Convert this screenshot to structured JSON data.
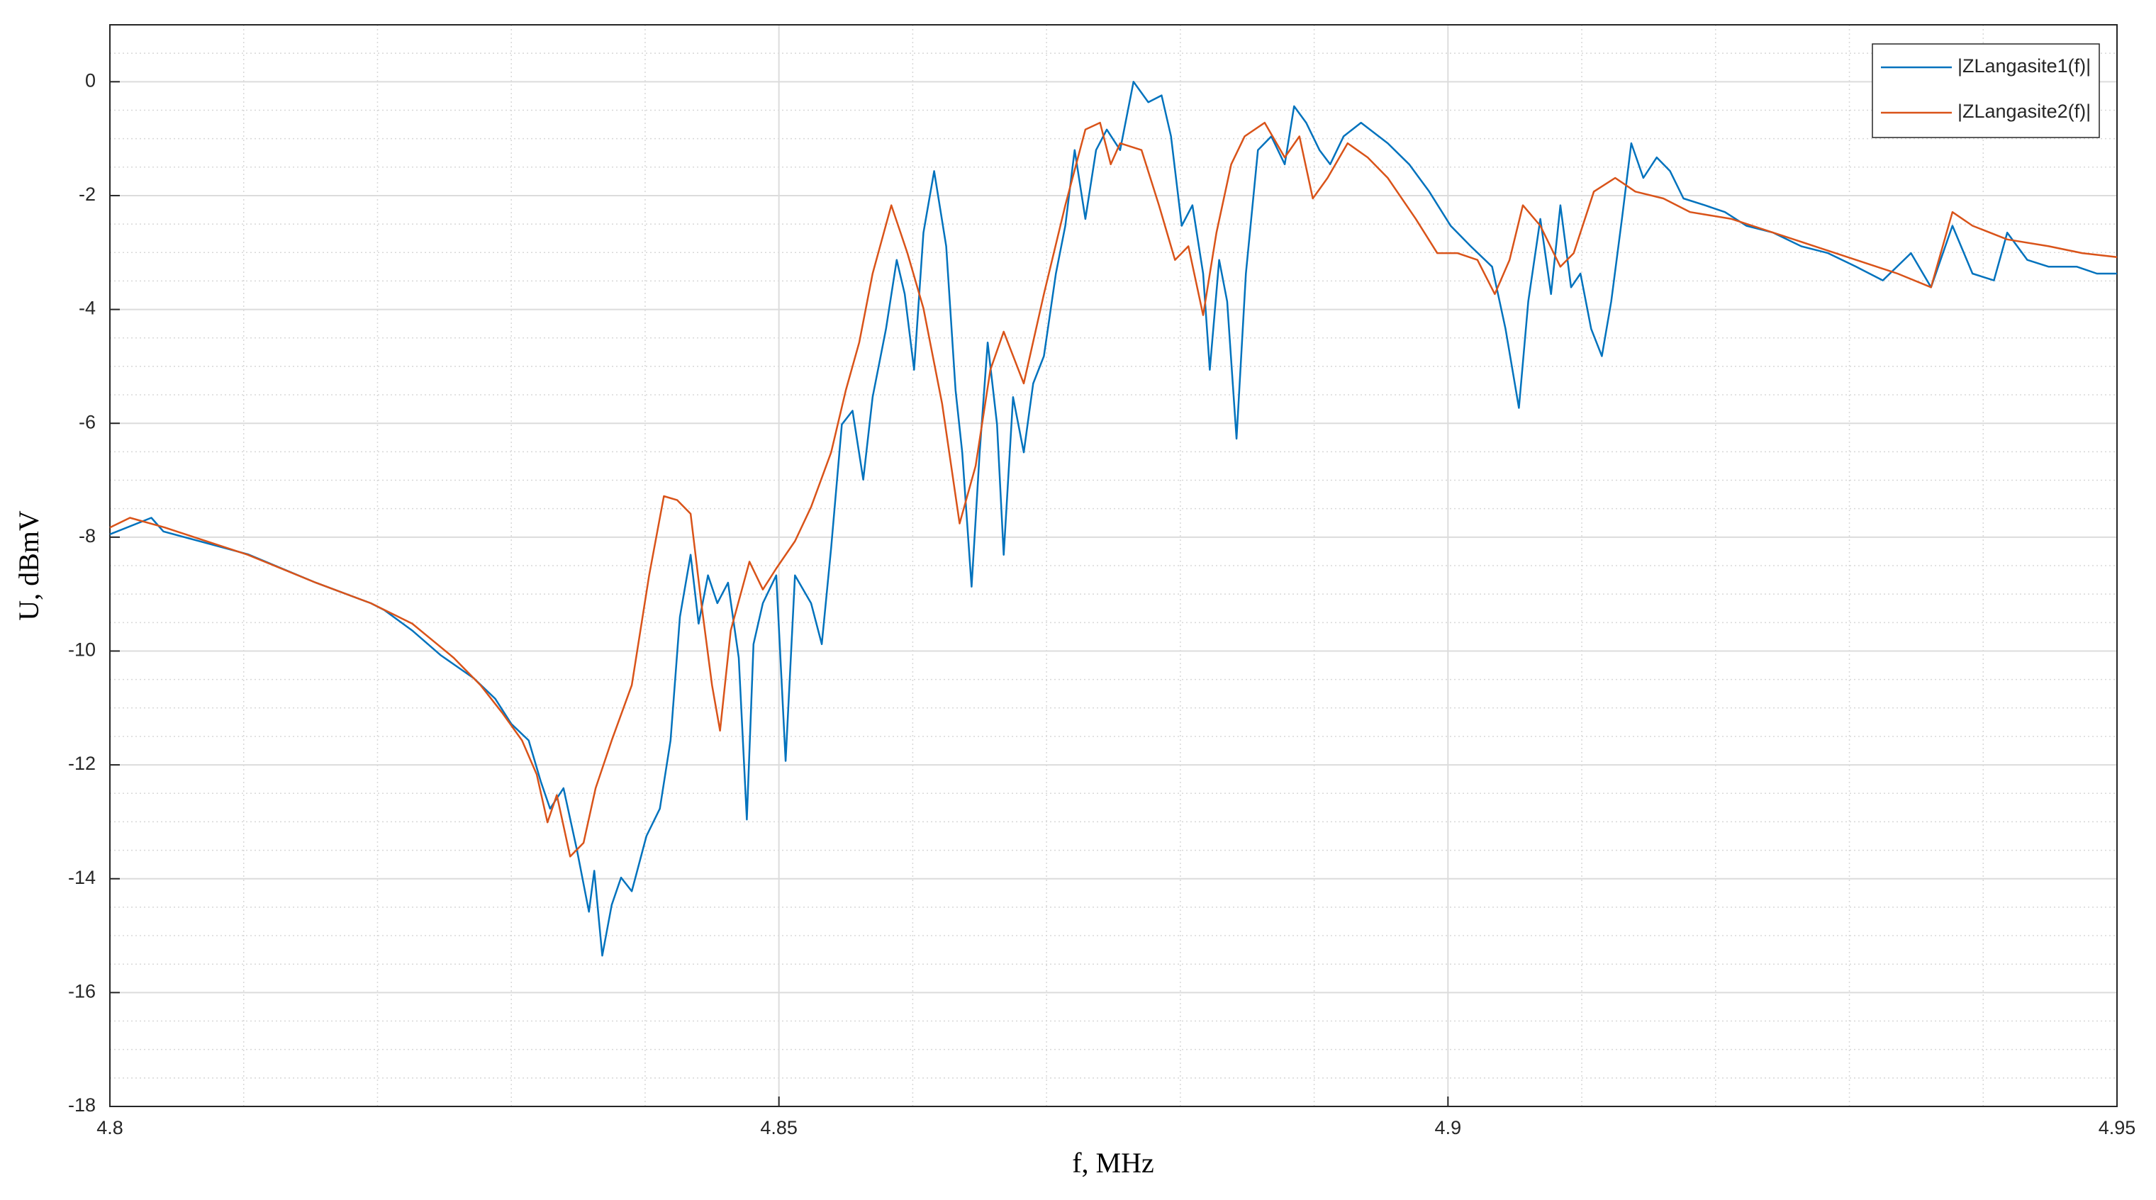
{
  "chart_data": {
    "type": "line",
    "xlabel": "f, MHz",
    "ylabel": "U, dBmV",
    "xlim": [
      4.8,
      4.95
    ],
    "xticks": [
      4.8,
      4.85,
      4.9,
      4.95
    ],
    "ylim": [
      -18,
      1
    ],
    "yticks": [
      -18,
      -16,
      -14,
      -12,
      -10,
      -8,
      -6,
      -4,
      -2,
      0
    ],
    "grid": true,
    "xminorticks": [
      4.81,
      4.82,
      4.83,
      4.84,
      4.86,
      4.87,
      4.88,
      4.89,
      4.91,
      4.92,
      4.93,
      4.94
    ],
    "yminorticks": [
      -17.5,
      -17,
      -16.5,
      -15.5,
      -15,
      -14.5,
      -13.5,
      -13,
      -12.5,
      -11.5,
      -11,
      -10.5,
      -9.5,
      -9,
      -8.5,
      -7.5,
      -7,
      -6.5,
      -5.5,
      -5,
      -4.5,
      -3.5,
      -3,
      -2.5,
      -1.5,
      -1,
      -0.5,
      0.5
    ],
    "legend": "upper right",
    "series": [
      {
        "name": "|ZLangasite1(f)|",
        "color": "#0072BD",
        "x": [
          4.8,
          4.8031,
          4.804,
          4.8103,
          4.8154,
          4.8195,
          4.8205,
          4.8226,
          4.8247,
          4.8272,
          4.8288,
          4.83,
          4.8313,
          4.8322,
          4.8329,
          4.8339,
          4.8349,
          4.8358,
          4.8362,
          4.8368,
          4.8375,
          4.8382,
          4.839,
          4.8401,
          4.8411,
          4.8419,
          4.8426,
          4.8434,
          4.844,
          4.8447,
          4.8454,
          4.8462,
          4.847,
          4.8476,
          4.8481,
          4.8488,
          4.8498,
          4.8505,
          4.8512,
          4.8524,
          4.8532,
          4.8539,
          4.8547,
          4.8555,
          4.8563,
          4.857,
          4.858,
          4.8588,
          4.8594,
          4.8601,
          4.8608,
          4.8616,
          4.8625,
          4.8632,
          4.8637,
          4.8644,
          4.865,
          4.8656,
          4.8663,
          4.8668,
          4.8675,
          4.8683,
          4.869,
          4.8698,
          4.8707,
          4.8714,
          4.8721,
          4.8729,
          4.8737,
          4.8745,
          4.8755,
          4.8765,
          4.8776,
          4.8786,
          4.8793,
          4.8801,
          4.8809,
          4.8817,
          4.8822,
          4.8829,
          4.8835,
          4.8842,
          4.8849,
          4.8858,
          4.8868,
          4.8878,
          4.8885,
          4.8894,
          4.8904,
          4.8912,
          4.8922,
          4.8935,
          4.8955,
          4.8971,
          4.8986,
          4.9002,
          4.9017,
          4.9033,
          4.9043,
          4.9053,
          4.906,
          4.9069,
          4.9077,
          4.9084,
          4.9092,
          4.9099,
          4.9107,
          4.9115,
          4.9122,
          4.913,
          4.9137,
          4.9146,
          4.9156,
          4.9166,
          4.9176,
          4.9192,
          4.9207,
          4.9223,
          4.9243,
          4.9264,
          4.9284,
          4.9305,
          4.9325,
          4.9346,
          4.9361,
          4.9377,
          4.9392,
          4.9408,
          4.9418,
          4.9433,
          4.9449,
          4.947,
          4.9485,
          4.95
        ],
        "values": [
          -7.95,
          -7.66,
          -7.9,
          -8.3,
          -8.8,
          -9.16,
          -9.28,
          -9.64,
          -10.07,
          -10.48,
          -10.84,
          -11.28,
          -11.57,
          -12.29,
          -12.77,
          -12.41,
          -13.49,
          -14.58,
          -13.86,
          -15.35,
          -14.46,
          -13.98,
          -14.22,
          -13.25,
          -12.77,
          -11.57,
          -9.4,
          -8.31,
          -9.52,
          -8.67,
          -9.16,
          -8.8,
          -10.12,
          -12.96,
          -9.88,
          -9.16,
          -8.67,
          -11.93,
          -8.67,
          -9.16,
          -9.88,
          -8.19,
          -6.02,
          -5.78,
          -6.99,
          -5.54,
          -4.34,
          -3.13,
          -3.73,
          -5.06,
          -2.65,
          -1.57,
          -2.89,
          -5.42,
          -6.51,
          -8.87,
          -6.51,
          -4.58,
          -6.02,
          -8.31,
          -5.54,
          -6.51,
          -5.3,
          -4.82,
          -3.37,
          -2.53,
          -1.2,
          -2.41,
          -1.2,
          -0.84,
          -1.2,
          0,
          -0.36,
          -0.24,
          -0.96,
          -2.53,
          -2.17,
          -3.37,
          -5.06,
          -3.13,
          -3.86,
          -6.27,
          -3.37,
          -1.2,
          -0.96,
          -1.45,
          -0.43,
          -0.72,
          -1.2,
          -1.45,
          -0.96,
          -0.72,
          -1.08,
          -1.45,
          -1.93,
          -2.53,
          -2.89,
          -3.25,
          -4.34,
          -5.73,
          -3.86,
          -2.41,
          -3.73,
          -2.17,
          -3.61,
          -3.37,
          -4.34,
          -4.82,
          -3.86,
          -2.41,
          -1.08,
          -1.69,
          -1.33,
          -1.57,
          -2.05,
          -2.17,
          -2.29,
          -2.53,
          -2.65,
          -2.89,
          -3.01,
          -3.25,
          -3.49,
          -3.01,
          -3.61,
          -2.53,
          -3.37,
          -3.49,
          -2.65,
          -3.13,
          -3.25,
          -3.25,
          -3.37,
          -3.37
        ]
      },
      {
        "name": "|ZLangasite2(f)|",
        "color": "#D95319",
        "x": [
          4.8,
          4.8015,
          4.8041,
          4.8103,
          4.8154,
          4.8195,
          4.8226,
          4.8257,
          4.8277,
          4.8293,
          4.8308,
          4.8319,
          4.8327,
          4.8334,
          4.8344,
          4.8354,
          4.8363,
          4.8375,
          4.839,
          4.8403,
          4.8414,
          4.8424,
          4.8434,
          4.8442,
          4.845,
          4.8456,
          4.8464,
          4.8478,
          4.8488,
          4.8498,
          4.8512,
          4.8524,
          4.8539,
          4.855,
          4.856,
          4.857,
          4.8584,
          4.8596,
          4.8608,
          4.8622,
          4.8635,
          4.8647,
          4.8658,
          4.8668,
          4.8683,
          4.8698,
          4.8714,
          4.8729,
          4.874,
          4.8748,
          4.8755,
          4.8771,
          4.8784,
          4.8796,
          4.8806,
          4.8817,
          4.8827,
          4.8838,
          4.8848,
          4.8863,
          4.8878,
          4.8889,
          4.8899,
          4.891,
          4.8925,
          4.894,
          4.8955,
          4.8976,
          4.8992,
          4.9007,
          4.9022,
          4.9035,
          4.9046,
          4.9056,
          4.9069,
          4.9084,
          4.9094,
          4.9109,
          4.9125,
          4.914,
          4.9161,
          4.9181,
          4.9212,
          4.9243,
          4.9274,
          4.9305,
          4.9336,
          4.9361,
          4.9377,
          4.9392,
          4.9418,
          4.9449,
          4.9474,
          4.95
        ],
        "values": [
          -7.83,
          -7.66,
          -7.83,
          -8.31,
          -8.8,
          -9.16,
          -9.52,
          -10.12,
          -10.6,
          -11.08,
          -11.57,
          -12.17,
          -13.01,
          -12.53,
          -13.61,
          -13.37,
          -12.41,
          -11.57,
          -10.6,
          -8.67,
          -7.28,
          -7.35,
          -7.59,
          -9.16,
          -10.6,
          -11.4,
          -9.64,
          -8.43,
          -8.92,
          -8.55,
          -8.07,
          -7.47,
          -6.51,
          -5.42,
          -4.58,
          -3.37,
          -2.17,
          -3.01,
          -3.98,
          -5.66,
          -7.76,
          -6.75,
          -5.06,
          -4.39,
          -5.3,
          -3.73,
          -2.17,
          -0.84,
          -0.72,
          -1.45,
          -1.08,
          -1.2,
          -2.17,
          -3.13,
          -2.89,
          -4.1,
          -2.65,
          -1.45,
          -0.96,
          -0.72,
          -1.33,
          -0.96,
          -2.05,
          -1.69,
          -1.08,
          -1.33,
          -1.69,
          -2.41,
          -3.01,
          -3.01,
          -3.13,
          -3.73,
          -3.13,
          -2.17,
          -2.53,
          -3.25,
          -3.01,
          -1.93,
          -1.69,
          -1.93,
          -2.05,
          -2.29,
          -2.41,
          -2.65,
          -2.89,
          -3.13,
          -3.37,
          -3.61,
          -2.29,
          -2.53,
          -2.77,
          -2.89,
          -3.01,
          -3.08
        ]
      }
    ]
  }
}
